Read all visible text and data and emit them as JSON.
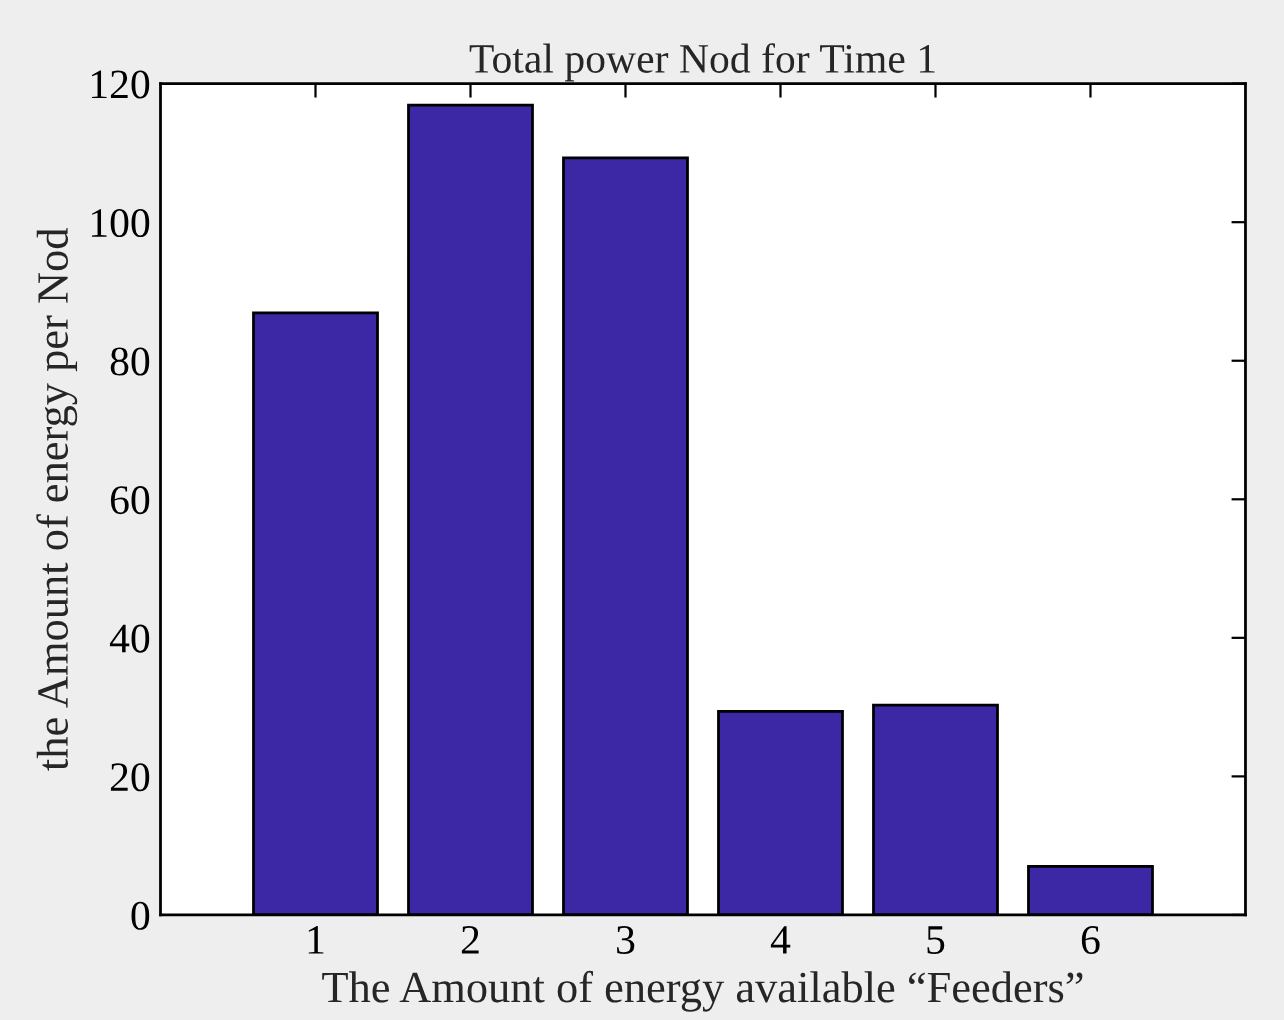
{
  "chart_data": {
    "type": "bar",
    "title": "Total power Nod for Time 1",
    "xlabel": "The Amount of energy available “Feeders”",
    "ylabel": "the Amount of energy per Nod",
    "categories": [
      "1",
      "2",
      "3",
      "4",
      "5",
      "6"
    ],
    "values": [
      86.9,
      116.9,
      109.3,
      29.4,
      30.3,
      7.0
    ],
    "color": "#3c27a5",
    "ylim": [
      0,
      120
    ],
    "yticks": [
      0,
      20,
      40,
      60,
      80,
      100,
      120
    ],
    "grid": false
  }
}
